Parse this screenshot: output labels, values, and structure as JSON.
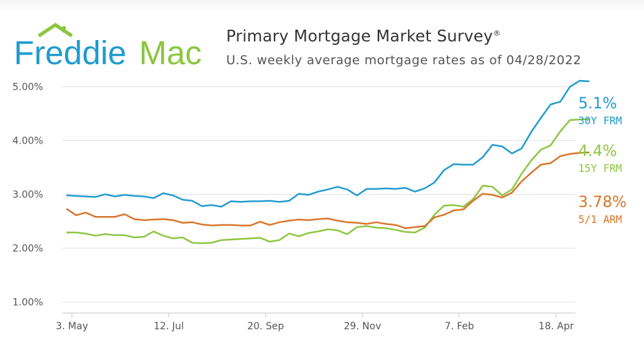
{
  "logo": {
    "word_1": "Freddie",
    "word_2": "Mac"
  },
  "header": {
    "title": "Primary Mortgage Market Survey",
    "title_mark": "®",
    "subtitle": "U.S. weekly average mortgage rates as of 04/28/2022"
  },
  "colors": {
    "frm30": "#1f9bcf",
    "frm15": "#8cc63f",
    "arm51": "#d9742a",
    "grid": "#e2e2e2",
    "axis_text": "#555555"
  },
  "chart_data": {
    "type": "line",
    "title": "Primary Mortgage Market Survey",
    "subtitle": "U.S. weekly average mortgage rates as of 04/28/2022",
    "x_start": "2021-04-29",
    "x_step_days": 7,
    "x_ticks": [
      {
        "date": "2021-05-03",
        "label": "3. May"
      },
      {
        "date": "2021-07-12",
        "label": "12. Jul"
      },
      {
        "date": "2021-09-20",
        "label": "20. Sep"
      },
      {
        "date": "2021-11-29",
        "label": "29. Nov"
      },
      {
        "date": "2022-02-07",
        "label": "7. Feb"
      },
      {
        "date": "2022-04-18",
        "label": "18. Apr"
      }
    ],
    "x_range": [
      "2021-04-26",
      "2022-05-02"
    ],
    "y_range": [
      0.8,
      5.2
    ],
    "y_ticks": [
      {
        "value": 1,
        "label": "1.00%"
      },
      {
        "value": 2,
        "label": "2.00%"
      },
      {
        "value": 3,
        "label": "3.00%"
      },
      {
        "value": 4,
        "label": "4.00%"
      },
      {
        "value": 5,
        "label": "5.00%"
      }
    ],
    "grid": true,
    "series": [
      {
        "name": "30Y FRM",
        "end_label": "5.1%",
        "color": "#1f9bcf",
        "values": [
          2.98,
          2.97,
          2.96,
          2.95,
          3.0,
          2.96,
          2.99,
          2.97,
          2.96,
          2.93,
          3.02,
          2.98,
          2.9,
          2.88,
          2.78,
          2.8,
          2.77,
          2.87,
          2.86,
          2.87,
          2.87,
          2.88,
          2.86,
          2.88,
          3.01,
          2.99,
          3.05,
          3.09,
          3.14,
          3.09,
          2.98,
          3.1,
          3.1,
          3.11,
          3.1,
          3.12,
          3.05,
          3.11,
          3.22,
          3.45,
          3.56,
          3.55,
          3.55,
          3.69,
          3.92,
          3.89,
          3.76,
          3.85,
          4.16,
          4.42,
          4.67,
          4.72,
          5.0,
          5.11,
          5.1
        ]
      },
      {
        "name": "15Y FRM",
        "end_label": "4.4%",
        "color": "#8cc63f",
        "values": [
          2.29,
          2.29,
          2.27,
          2.23,
          2.26,
          2.24,
          2.24,
          2.2,
          2.21,
          2.31,
          2.23,
          2.18,
          2.2,
          2.1,
          2.09,
          2.1,
          2.15,
          2.16,
          2.17,
          2.18,
          2.19,
          2.12,
          2.15,
          2.27,
          2.22,
          2.28,
          2.31,
          2.35,
          2.33,
          2.26,
          2.39,
          2.41,
          2.38,
          2.37,
          2.34,
          2.3,
          2.29,
          2.38,
          2.62,
          2.79,
          2.8,
          2.77,
          2.91,
          3.16,
          3.14,
          2.98,
          3.09,
          3.38,
          3.63,
          3.83,
          3.91,
          4.17,
          4.38,
          4.39,
          4.4
        ]
      },
      {
        "name": "5/1 ARM",
        "end_label": "3.78%",
        "color": "#d9742a",
        "values": [
          2.73,
          2.61,
          2.66,
          2.58,
          2.58,
          2.58,
          2.63,
          2.54,
          2.52,
          2.53,
          2.54,
          2.52,
          2.47,
          2.48,
          2.44,
          2.42,
          2.43,
          2.43,
          2.42,
          2.42,
          2.49,
          2.43,
          2.48,
          2.51,
          2.53,
          2.52,
          2.54,
          2.55,
          2.51,
          2.48,
          2.47,
          2.45,
          2.48,
          2.45,
          2.43,
          2.37,
          2.39,
          2.41,
          2.57,
          2.62,
          2.7,
          2.72,
          2.88,
          3.01,
          2.99,
          2.94,
          3.03,
          3.24,
          3.4,
          3.55,
          3.58,
          3.71,
          3.75,
          3.77,
          3.78
        ]
      }
    ]
  }
}
